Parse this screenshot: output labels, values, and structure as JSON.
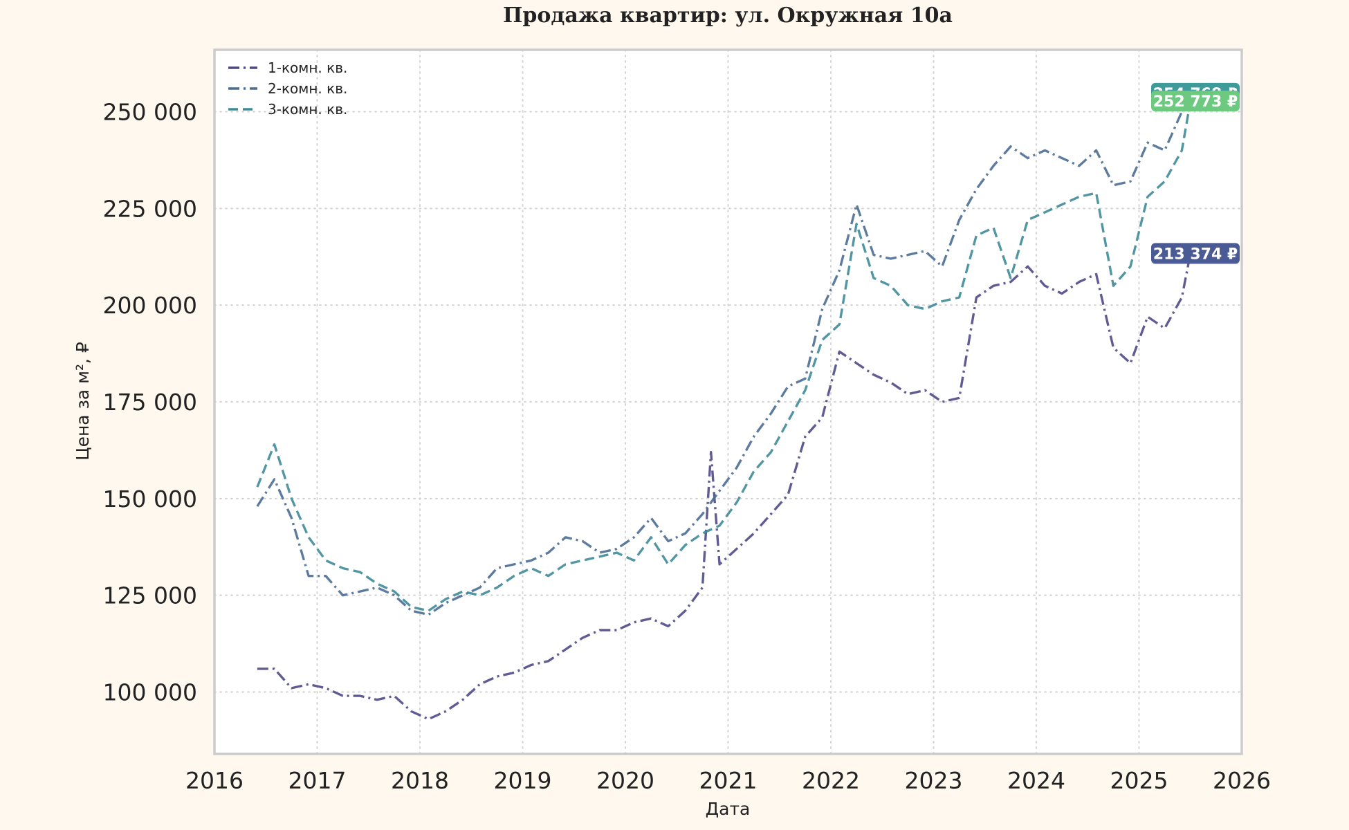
{
  "chart_data": {
    "type": "line",
    "title": "Продажа квартир: ул. Окружная 10а",
    "xlabel": "Дата",
    "ylabel": "Цена за м², ₽",
    "xlim": [
      "2016-01-01",
      "2026-01-01"
    ],
    "ylim": [
      84000,
      266000
    ],
    "x_ticks": [
      "2016",
      "2017",
      "2018",
      "2019",
      "2020",
      "2021",
      "2022",
      "2023",
      "2024",
      "2025",
      "2026"
    ],
    "y_ticks": [
      {
        "value": 100000,
        "label": "100 000"
      },
      {
        "value": 125000,
        "label": "125 000"
      },
      {
        "value": 150000,
        "label": "150 000"
      },
      {
        "value": 175000,
        "label": "175 000"
      },
      {
        "value": 200000,
        "label": "200 000"
      },
      {
        "value": 225000,
        "label": "225 000"
      },
      {
        "value": 250000,
        "label": "250 000"
      }
    ],
    "grid": true,
    "legend_position": "top-left",
    "series": [
      {
        "name": "1-комн. кв.",
        "color": "#4f4a87",
        "dash": "dashdot",
        "end_label": "213 374 ₽",
        "end_label_color": "#4a5a94",
        "x": [
          "2016-06",
          "2016-08",
          "2016-10",
          "2016-12",
          "2017-02",
          "2017-04",
          "2017-06",
          "2017-08",
          "2017-10",
          "2017-12",
          "2018-02",
          "2018-04",
          "2018-06",
          "2018-08",
          "2018-10",
          "2018-12",
          "2019-02",
          "2019-04",
          "2019-06",
          "2019-08",
          "2019-10",
          "2019-12",
          "2020-02",
          "2020-04",
          "2020-06",
          "2020-08",
          "2020-10",
          "2020-11",
          "2020-12",
          "2021-02",
          "2021-04",
          "2021-06",
          "2021-08",
          "2021-10",
          "2021-12",
          "2022-02",
          "2022-04",
          "2022-06",
          "2022-08",
          "2022-10",
          "2022-12",
          "2023-02",
          "2023-04",
          "2023-06",
          "2023-08",
          "2023-10",
          "2023-12",
          "2024-02",
          "2024-04",
          "2024-06",
          "2024-08",
          "2024-10",
          "2024-12",
          "2025-02",
          "2025-04",
          "2025-06",
          "2025-07"
        ],
        "values": [
          106000,
          106000,
          101000,
          102000,
          101000,
          99000,
          99000,
          98000,
          99000,
          95000,
          93000,
          95000,
          98000,
          102000,
          104000,
          105000,
          107000,
          108000,
          111000,
          114000,
          116000,
          116000,
          118000,
          119000,
          117000,
          121000,
          127000,
          162000,
          133000,
          137000,
          141000,
          146000,
          151000,
          166000,
          171000,
          188000,
          185000,
          182000,
          180000,
          177000,
          178000,
          175000,
          176000,
          202000,
          205000,
          206000,
          210000,
          205000,
          203000,
          206000,
          208000,
          189000,
          185000,
          197000,
          194000,
          202000,
          213374
        ]
      },
      {
        "name": "2-комн. кв.",
        "color": "#4a6d93",
        "dash": "dashdot",
        "end_label": "254 768 ₽",
        "end_label_color": "#3f9a9a",
        "x": [
          "2016-06",
          "2016-08",
          "2016-10",
          "2016-12",
          "2017-02",
          "2017-04",
          "2017-06",
          "2017-08",
          "2017-10",
          "2017-12",
          "2018-02",
          "2018-04",
          "2018-06",
          "2018-08",
          "2018-10",
          "2018-12",
          "2019-02",
          "2019-04",
          "2019-06",
          "2019-08",
          "2019-10",
          "2019-12",
          "2020-02",
          "2020-04",
          "2020-06",
          "2020-08",
          "2020-10",
          "2020-12",
          "2021-02",
          "2021-04",
          "2021-06",
          "2021-08",
          "2021-10",
          "2021-12",
          "2022-02",
          "2022-04",
          "2022-06",
          "2022-08",
          "2022-10",
          "2022-12",
          "2023-02",
          "2023-04",
          "2023-06",
          "2023-08",
          "2023-10",
          "2023-12",
          "2024-02",
          "2024-04",
          "2024-06",
          "2024-08",
          "2024-10",
          "2024-12",
          "2025-02",
          "2025-04",
          "2025-06",
          "2025-07"
        ],
        "values": [
          148000,
          155000,
          145000,
          130000,
          130000,
          125000,
          126000,
          127000,
          125000,
          121000,
          120000,
          123000,
          125000,
          127000,
          132000,
          133000,
          134000,
          136000,
          140000,
          139000,
          136000,
          137000,
          140000,
          145000,
          139000,
          141000,
          146000,
          152000,
          158000,
          166000,
          172000,
          179000,
          181000,
          199000,
          209000,
          226000,
          213000,
          212000,
          213000,
          214000,
          210000,
          222000,
          230000,
          236000,
          241000,
          238000,
          240000,
          238000,
          236000,
          240000,
          231000,
          232000,
          242000,
          240000,
          250000,
          254768
        ]
      },
      {
        "name": "3-комн. кв.",
        "color": "#3e8b98",
        "dash": "dashed",
        "end_label": "252 773 ₽",
        "end_label_color": "#6cc97f",
        "x": [
          "2016-06",
          "2016-08",
          "2016-10",
          "2016-12",
          "2017-02",
          "2017-04",
          "2017-06",
          "2017-08",
          "2017-10",
          "2017-12",
          "2018-02",
          "2018-04",
          "2018-06",
          "2018-08",
          "2018-10",
          "2018-12",
          "2019-02",
          "2019-04",
          "2019-06",
          "2019-08",
          "2019-10",
          "2019-12",
          "2020-02",
          "2020-04",
          "2020-06",
          "2020-08",
          "2020-10",
          "2020-12",
          "2021-02",
          "2021-04",
          "2021-06",
          "2021-08",
          "2021-10",
          "2021-12",
          "2022-02",
          "2022-04",
          "2022-06",
          "2022-08",
          "2022-10",
          "2022-12",
          "2023-02",
          "2023-04",
          "2023-06",
          "2023-08",
          "2023-10",
          "2023-12",
          "2024-02",
          "2024-04",
          "2024-06",
          "2024-08",
          "2024-10",
          "2024-12",
          "2025-02",
          "2025-04",
          "2025-06",
          "2025-07"
        ],
        "values": [
          153000,
          164000,
          150000,
          140000,
          134000,
          132000,
          131000,
          128000,
          126000,
          122000,
          121000,
          124000,
          126000,
          125000,
          127000,
          130000,
          132000,
          130000,
          133000,
          134000,
          135000,
          136000,
          134000,
          140000,
          133000,
          138000,
          141000,
          143000,
          149000,
          157000,
          162000,
          170000,
          178000,
          191000,
          195000,
          221000,
          207000,
          205000,
          200000,
          199000,
          201000,
          202000,
          218000,
          220000,
          207000,
          222000,
          224000,
          226000,
          228000,
          229000,
          205000,
          210000,
          228000,
          232000,
          240000,
          252773
        ]
      }
    ]
  }
}
